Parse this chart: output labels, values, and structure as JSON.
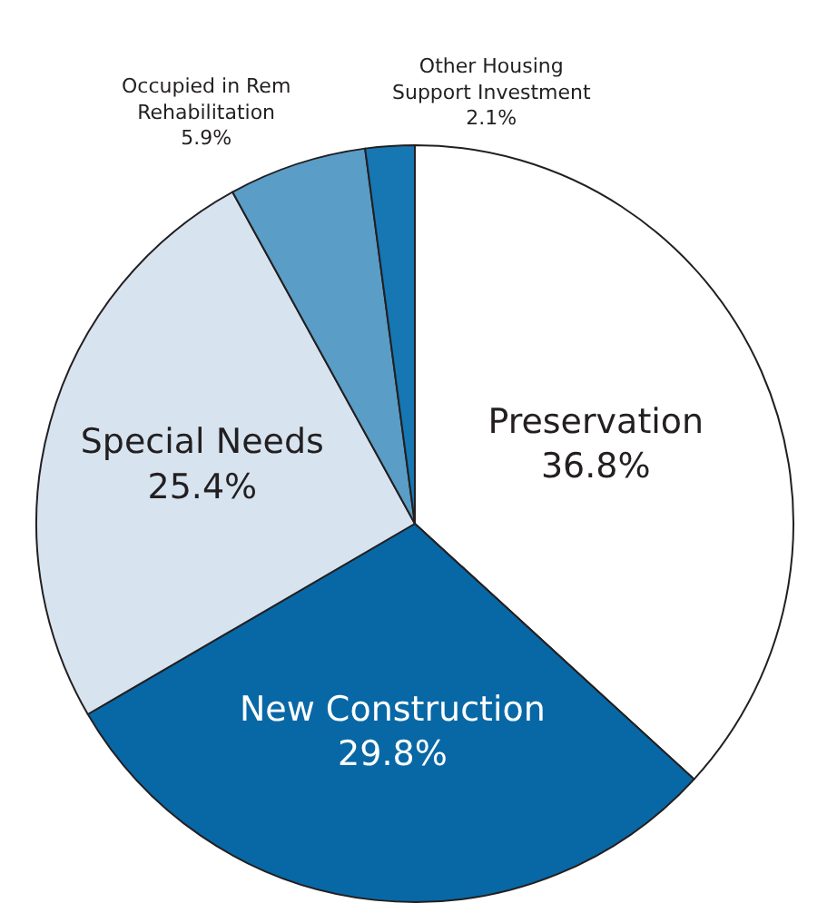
{
  "chart_data": {
    "type": "pie",
    "categories": [
      "Preservation",
      "New Construction",
      "Special Needs",
      "Occupied in Rem Rehabilitation",
      "Other Housing Support Investment"
    ],
    "values": [
      36.8,
      29.8,
      25.4,
      5.9,
      2.1
    ],
    "value_labels": [
      "36.8%",
      "29.8%",
      "25.4%",
      "5.9%",
      "2.1%"
    ],
    "colors": [
      "#ffffff",
      "#0868a6",
      "#d7e4f0",
      "#5a9dc6",
      "#1677b3"
    ]
  }
}
